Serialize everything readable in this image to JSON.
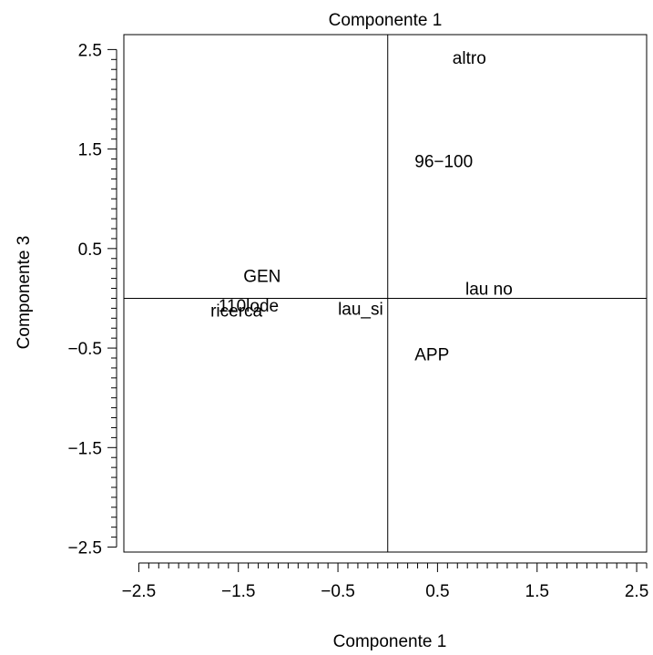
{
  "chart_data": {
    "type": "scatter",
    "title": "Componente  1",
    "xlabel": "Componente  1",
    "ylabel": "Componente  3",
    "xlim": [
      -2.65,
      2.6
    ],
    "ylim": [
      -2.55,
      2.65
    ],
    "x_ticks": [
      -2.5,
      -1.5,
      -0.5,
      0.5,
      1.5,
      2.5
    ],
    "x_tick_labels": [
      "−2.5",
      "−1.5",
      "−0.5",
      "0.5",
      "1.5",
      "2.5"
    ],
    "y_ticks": [
      2.5,
      1.5,
      0.5,
      -0.5,
      -1.5,
      -2.5
    ],
    "y_tick_labels": [
      "2.5",
      "1.5",
      "0.5",
      "−0.5",
      "−1.5",
      "−2.5"
    ],
    "reference_lines": {
      "x": 0,
      "y": 0
    },
    "grid": false,
    "legend": "none",
    "points": [
      {
        "label": "altro",
        "x": 0.65,
        "y": 2.42
      },
      {
        "label": "96−100",
        "x": 0.27,
        "y": 1.38
      },
      {
        "label": "GEN",
        "x": -1.45,
        "y": 0.23
      },
      {
        "label": "lau no",
        "x": 0.78,
        "y": 0.1
      },
      {
        "label": "110lode",
        "x": -1.7,
        "y": -0.07
      },
      {
        "label": "ricerca",
        "x": -1.78,
        "y": -0.12
      },
      {
        "label": "lau_si",
        "x": -0.5,
        "y": -0.1
      },
      {
        "label": "APP",
        "x": 0.27,
        "y": -0.56
      }
    ]
  }
}
